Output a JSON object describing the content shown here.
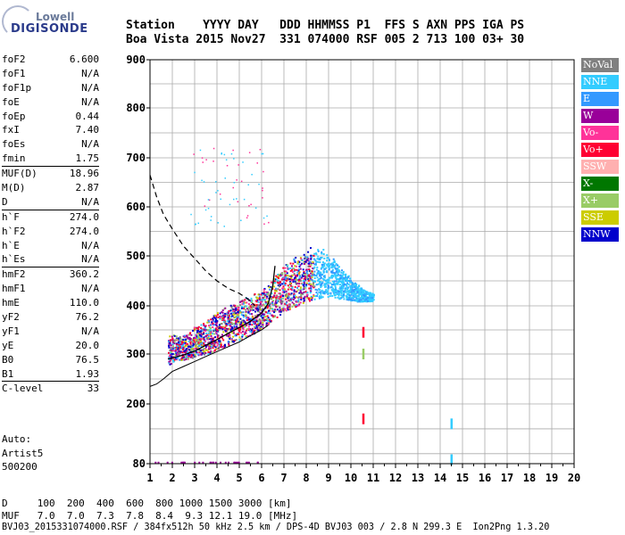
{
  "logo": {
    "brand_top": "Lowell",
    "brand_bottom": "DIGISONDE"
  },
  "header": {
    "row1": "Station    YYYY DAY   DDD HHMMSS P1  FFS S AXN PPS IGA PS",
    "row2": "Boa Vista 2015 Nov27  331 074000 RSF 005 2 713 100 03+ 30"
  },
  "params": [
    {
      "label": "foF2",
      "value": "6.600"
    },
    {
      "label": "foF1",
      "value": "N/A"
    },
    {
      "label": "foF1p",
      "value": "N/A"
    },
    {
      "label": "foE",
      "value": "N/A"
    },
    {
      "label": "foEp",
      "value": "0.44"
    },
    {
      "label": "fxI",
      "value": "7.40"
    },
    {
      "label": "foEs",
      "value": "N/A"
    },
    {
      "label": "fmin",
      "value": "1.75",
      "sep_after": true
    },
    {
      "label": "MUF(D)",
      "value": "18.96"
    },
    {
      "label": "M(D)",
      "value": "2.87"
    },
    {
      "label": "D",
      "value": "N/A",
      "sep_after": true
    },
    {
      "label": "h`F",
      "value": "274.0"
    },
    {
      "label": "h`F2",
      "value": "274.0"
    },
    {
      "label": "h`E",
      "value": "N/A"
    },
    {
      "label": "h`Es",
      "value": "N/A",
      "sep_after": true
    },
    {
      "label": "hmF2",
      "value": "360.2"
    },
    {
      "label": "hmF1",
      "value": "N/A"
    },
    {
      "label": "hmE",
      "value": "110.0"
    },
    {
      "label": "yF2",
      "value": "76.2"
    },
    {
      "label": "yF1",
      "value": "N/A"
    },
    {
      "label": "yE",
      "value": "20.0"
    },
    {
      "label": "B0",
      "value": "76.5"
    },
    {
      "label": "B1",
      "value": "1.93",
      "sep_after": true
    },
    {
      "label": "C-level",
      "value": "33",
      "sep_after": true
    }
  ],
  "auto": {
    "line1": "Auto:",
    "line2": "Artist5",
    "line3": "500200"
  },
  "footer": {
    "row_d": "D     100  200  400  600  800 1000 1500 3000 [km]",
    "row_muf": "MUF   7.0  7.0  7.3  7.8  8.4  9.3 12.1 19.0 [MHz]",
    "row_file": "BVJ03_2015331074000.RSF / 384fx512h 50 kHz 2.5 km / DPS-4D BVJ03 003 / 2.8 N 299.3 E  Ion2Png 1.3.20"
  },
  "legend": [
    {
      "label": "NoVal",
      "color": "#808080",
      "text_color": "#ffffff"
    },
    {
      "label": "NNE",
      "color": "#33ccff",
      "text_color": "#ffffff"
    },
    {
      "label": "E",
      "color": "#3399ff",
      "text_color": "#ffffff"
    },
    {
      "label": "W",
      "color": "#990099",
      "text_color": "#ffffff"
    },
    {
      "label": "Vo-",
      "color": "#ff3399",
      "text_color": "#ffffff"
    },
    {
      "label": "Vo+",
      "color": "#ff0033",
      "text_color": "#ffffff"
    },
    {
      "label": "SSW",
      "color": "#ffb0b0",
      "text_color": "#ffffff"
    },
    {
      "label": "X-",
      "color": "#007700",
      "text_color": "#ffffff"
    },
    {
      "label": "X+",
      "color": "#99cc66",
      "text_color": "#ffffff"
    },
    {
      "label": "SSE",
      "color": "#cccc00",
      "text_color": "#ffffff"
    },
    {
      "label": "NNW",
      "color": "#0000cc",
      "text_color": "#ffffff"
    }
  ],
  "chart_data": {
    "type": "scatter",
    "title": "",
    "xlabel": "",
    "ylabel": "",
    "xlim": [
      1,
      20
    ],
    "ylim": [
      80,
      900
    ],
    "x_ticks": [
      1,
      2,
      3,
      4,
      5,
      6,
      7,
      8,
      9,
      10,
      11,
      12,
      13,
      14,
      15,
      16,
      17,
      18,
      19,
      20
    ],
    "y_ticks": [
      80,
      200,
      300,
      400,
      500,
      600,
      700,
      800,
      900
    ],
    "grid": true,
    "legend_position": "right",
    "echo_trace_lower": {
      "x": [
        1.8,
        2.0,
        2.5,
        3.0,
        3.5,
        4.0,
        4.5,
        5.0,
        5.5,
        6.0,
        6.5,
        7.0,
        7.5,
        8.0,
        8.5,
        9.0,
        9.5,
        10.0
      ],
      "y": [
        275,
        285,
        290,
        295,
        300,
        310,
        320,
        330,
        340,
        355,
        370,
        390,
        400,
        410,
        415,
        420,
        415,
        410
      ]
    },
    "echo_trace_upper": {
      "x": [
        2.5,
        3.0,
        3.5,
        4.0,
        4.5,
        5.0,
        5.5,
        6.0,
        6.5,
        7.0,
        7.5,
        8.0,
        8.5,
        9.0,
        9.5,
        10.0,
        10.5,
        11.0
      ],
      "y": [
        330,
        350,
        360,
        375,
        390,
        400,
        410,
        420,
        440,
        470,
        480,
        500,
        505,
        490,
        470,
        450,
        430,
        425
      ]
    },
    "profile_curve": {
      "x": [
        1.8,
        2.5,
        3.0,
        3.5,
        4.0,
        4.5,
        5.0,
        5.5,
        6.0,
        6.3,
        6.5,
        6.6
      ],
      "y": [
        290,
        298,
        306,
        318,
        330,
        343,
        355,
        368,
        385,
        405,
        440,
        480
      ]
    },
    "maxf_curve": {
      "x": [
        1.0,
        1.3,
        1.6,
        2.0,
        2.5,
        3.0,
        3.5,
        4.0,
        4.5,
        5.0,
        5.5,
        5.7
      ],
      "y": [
        665,
        620,
        585,
        555,
        520,
        495,
        470,
        450,
        435,
        425,
        410,
        400
      ]
    },
    "lower_curve": {
      "x": [
        1.0,
        1.3,
        1.6,
        2.0,
        2.5,
        3.0,
        3.5,
        4.0,
        4.5,
        5.0,
        5.5,
        6.0,
        6.3
      ],
      "y": [
        235,
        240,
        250,
        265,
        275,
        285,
        295,
        305,
        315,
        325,
        338,
        350,
        360
      ]
    },
    "isolated_marks": [
      {
        "x": 10.55,
        "y": 345,
        "series": "Vo+"
      },
      {
        "x": 10.55,
        "y": 300,
        "series": "X+"
      },
      {
        "x": 10.55,
        "y": 170,
        "series": "Vo+"
      },
      {
        "x": 14.5,
        "y": 160,
        "series": "NNE"
      },
      {
        "x": 14.5,
        "y": 88,
        "series": "NNE"
      }
    ]
  }
}
